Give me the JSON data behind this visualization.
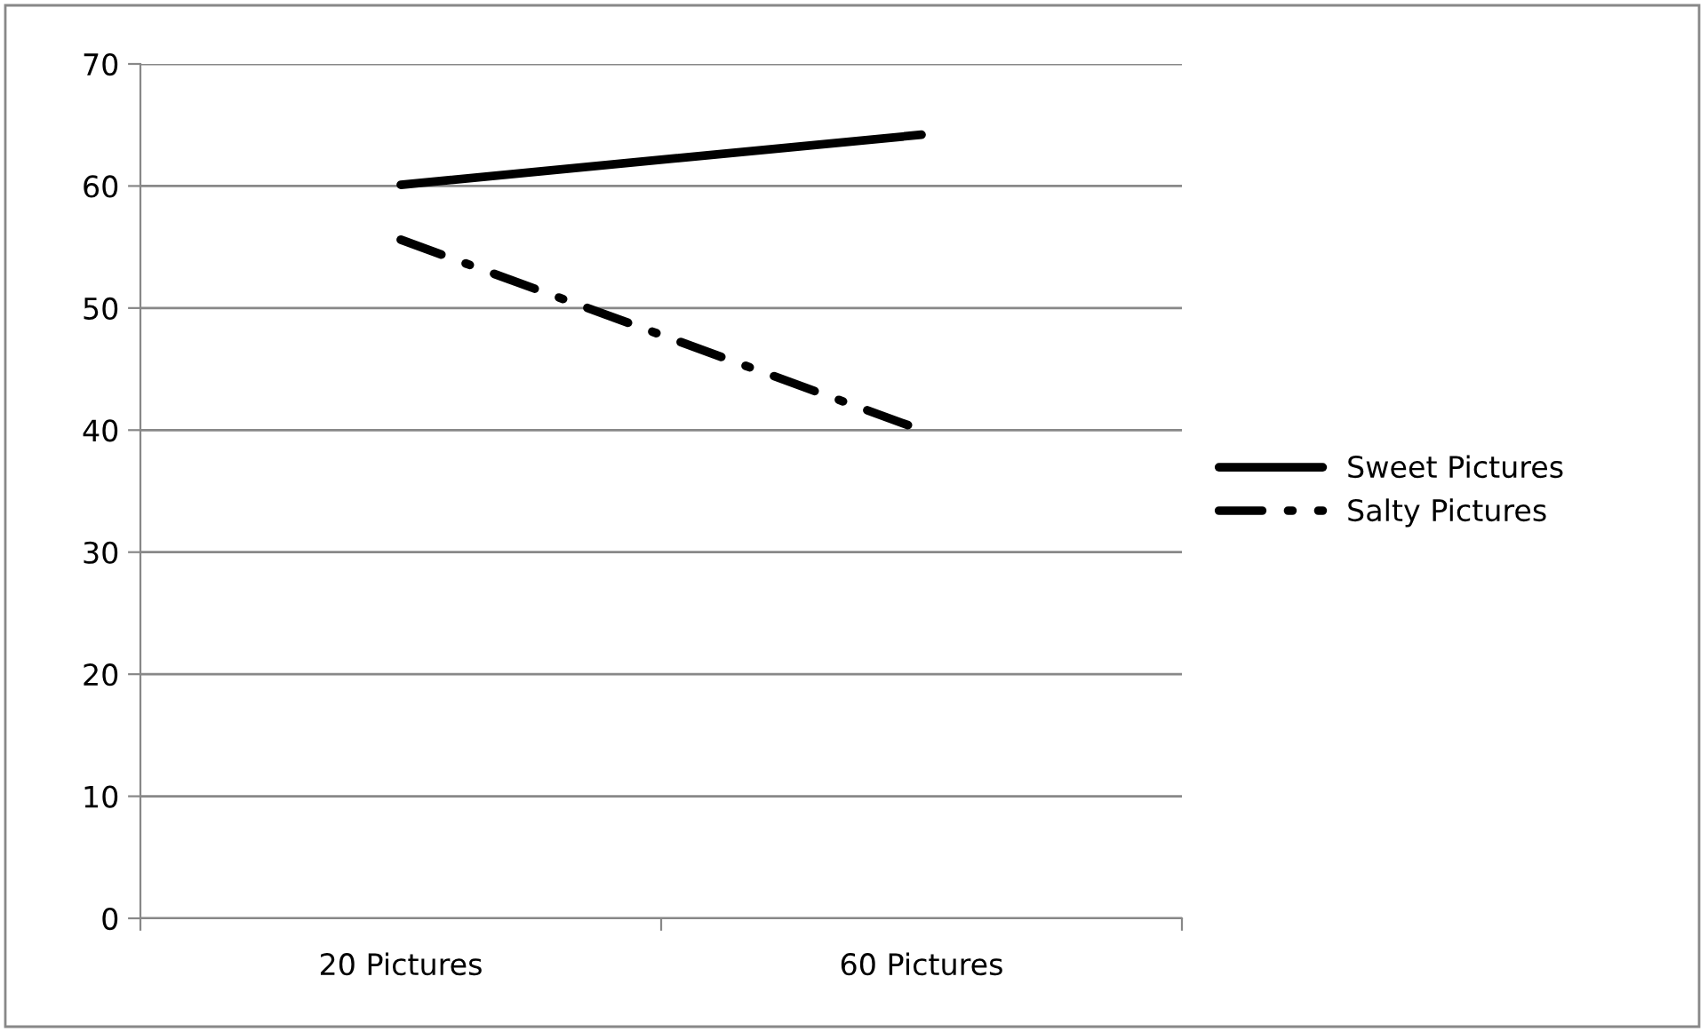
{
  "chart_data": {
    "type": "line",
    "categories": [
      "20 Pictures",
      "60 Pictures"
    ],
    "series": [
      {
        "name": "Sweet Pictures",
        "color": "#000000",
        "values": [
          60.1,
          64.2
        ],
        "line_style": "solid"
      },
      {
        "name": "Salty Pictures",
        "color": "#000000",
        "values": [
          55.6,
          40
        ],
        "line_style": "dashdot"
      }
    ],
    "ylim": [
      0,
      70
    ],
    "yticks": [
      0,
      10,
      20,
      30,
      40,
      50,
      60,
      70
    ],
    "grid": "y",
    "legend": "right"
  }
}
